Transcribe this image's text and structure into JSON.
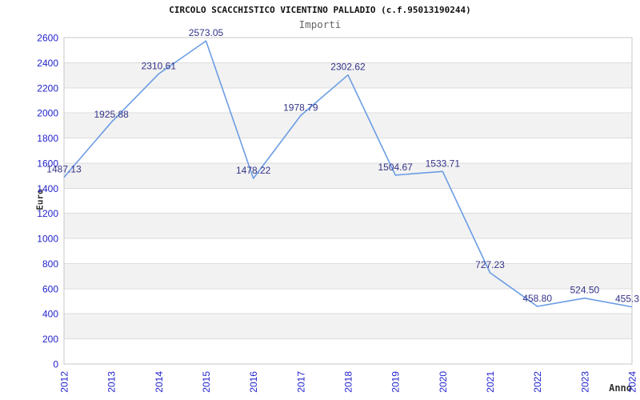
{
  "chart_data": {
    "type": "line",
    "title": "CIRCOLO SCACCHISTICO VICENTINO PALLADIO (c.f.95013190244)",
    "subtitle": "Importi",
    "xlabel": "Anno",
    "ylabel": "Euro",
    "categories": [
      "2012",
      "2013",
      "2014",
      "2015",
      "2016",
      "2017",
      "2018",
      "2019",
      "2020",
      "2021",
      "2022",
      "2023",
      "2024"
    ],
    "series": [
      {
        "name": "Importi",
        "values": [
          1487.13,
          1925.88,
          2310.61,
          2573.05,
          1478.22,
          1978.79,
          2302.62,
          1504.67,
          1533.71,
          727.23,
          458.8,
          524.5,
          455.3
        ]
      }
    ],
    "point_labels": [
      "1487.13",
      "1925.88",
      "2310.61",
      "2573.05",
      "1478.22",
      "1978.79",
      "2302.62",
      "1504.67",
      "1533.71",
      "727.23",
      "458.80",
      "524.50",
      "455.3"
    ],
    "ylim": [
      0,
      2600
    ],
    "ytick_step": 200,
    "grid": true,
    "legend": "none",
    "band_pattern": "alternating horizontal bands starting white at 0",
    "colors": {
      "line": "#6b9de4",
      "tick_label": "#2222cc",
      "point_label": "#333388",
      "band": "#f2f2f2",
      "gridline": "#dcdcdc",
      "border": "#c8c8c8",
      "title": "#111111",
      "subtitle": "#666666",
      "axis_title": "#333333",
      "background": "#ffffff"
    }
  }
}
